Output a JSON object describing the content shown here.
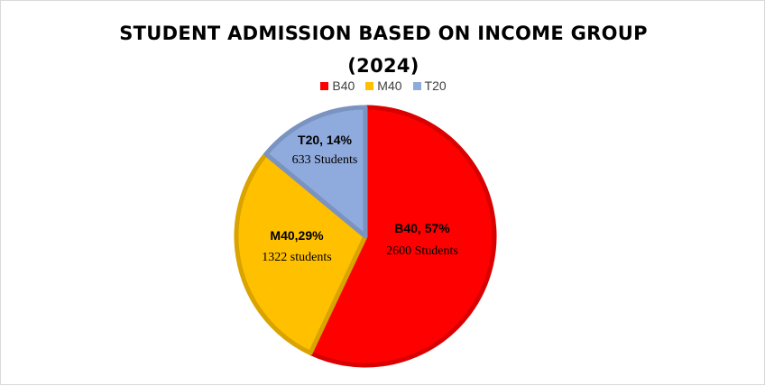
{
  "chart_data": {
    "type": "pie",
    "title_line1": "STUDENT ADMISSION BASED ON INCOME GROUP",
    "title_line2": "(2024)",
    "legend_position": "top",
    "slices": [
      {
        "name": "B40",
        "percent": 57,
        "students": 2600,
        "label_line1": "B40, 57%",
        "label_line2": "2600 Students",
        "color": "#ff0000",
        "edge": "#d90000"
      },
      {
        "name": "M40",
        "percent": 29,
        "students": 1322,
        "label_line1": "M40,29%",
        "label_line2": "1322 students",
        "color": "#ffc000",
        "edge": "#d9a300"
      },
      {
        "name": "T20",
        "percent": 14,
        "students": 633,
        "label_line1": "T20, 14%",
        "label_line2": "633 Students",
        "color": "#8faadc",
        "edge": "#7a93c0"
      }
    ]
  }
}
